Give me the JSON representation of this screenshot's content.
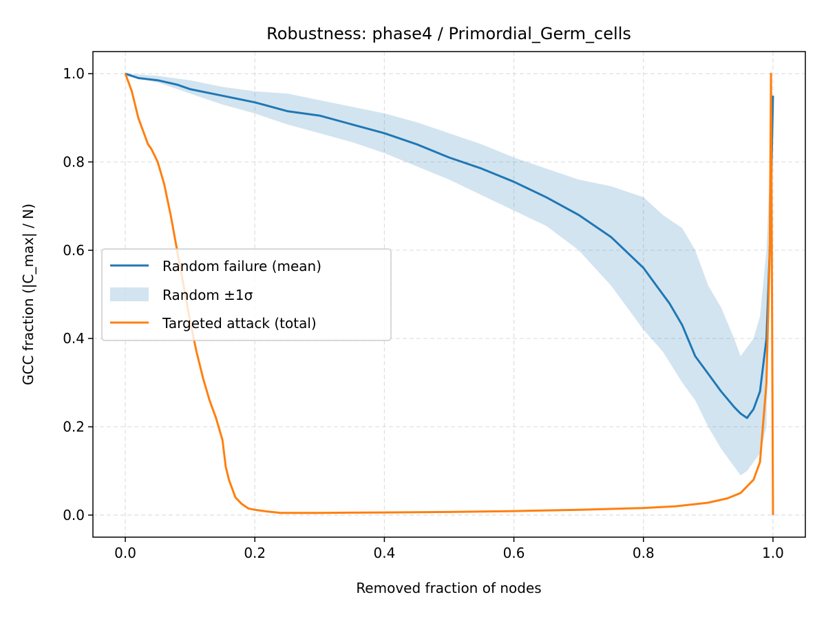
{
  "chart_data": {
    "type": "line",
    "title": "Robustness: phase4 / Primordial_Germ_cells",
    "xlabel": "Removed fraction of nodes",
    "ylabel": "GCC fraction (|C_max| / N)",
    "xlim": [
      -0.05,
      1.05
    ],
    "ylim": [
      -0.05,
      1.05
    ],
    "xticks": [
      0.0,
      0.2,
      0.4,
      0.6,
      0.8,
      1.0
    ],
    "xtick_labels": [
      "0.0",
      "0.2",
      "0.4",
      "0.6",
      "0.8",
      "1.0"
    ],
    "yticks": [
      0.0,
      0.2,
      0.4,
      0.6,
      0.8,
      1.0
    ],
    "ytick_labels": [
      "0.0",
      "0.2",
      "0.4",
      "0.6",
      "0.8",
      "1.0"
    ],
    "grid": true,
    "legend_position": "center-left",
    "legend": [
      {
        "label": "Random failure (mean)",
        "kind": "line",
        "color": "#1f77b4"
      },
      {
        "label": "Random ±1σ",
        "kind": "band",
        "color": "#1f77b4"
      },
      {
        "label": "Targeted attack (total)",
        "kind": "line",
        "color": "#ff7f0e"
      }
    ],
    "series": [
      {
        "name": "Random failure (mean)",
        "color": "#1f77b4",
        "x": [
          0.0,
          0.02,
          0.05,
          0.08,
          0.1,
          0.15,
          0.2,
          0.25,
          0.3,
          0.35,
          0.4,
          0.45,
          0.5,
          0.55,
          0.6,
          0.65,
          0.7,
          0.75,
          0.8,
          0.82,
          0.84,
          0.86,
          0.88,
          0.9,
          0.92,
          0.94,
          0.95,
          0.96,
          0.97,
          0.98,
          0.99,
          0.995,
          1.0
        ],
        "y": [
          1.0,
          0.99,
          0.985,
          0.975,
          0.965,
          0.95,
          0.935,
          0.915,
          0.905,
          0.885,
          0.865,
          0.84,
          0.81,
          0.785,
          0.755,
          0.72,
          0.68,
          0.63,
          0.56,
          0.52,
          0.48,
          0.43,
          0.36,
          0.32,
          0.28,
          0.245,
          0.23,
          0.22,
          0.24,
          0.28,
          0.4,
          0.6,
          0.95
        ]
      },
      {
        "name": "Random ±1σ",
        "color": "#1f77b4",
        "x": [
          0.0,
          0.05,
          0.1,
          0.15,
          0.2,
          0.25,
          0.3,
          0.35,
          0.4,
          0.45,
          0.5,
          0.55,
          0.6,
          0.65,
          0.7,
          0.75,
          0.8,
          0.83,
          0.86,
          0.88,
          0.9,
          0.92,
          0.94,
          0.95,
          0.96,
          0.97,
          0.98,
          0.99,
          1.0
        ],
        "upper": [
          1.0,
          0.995,
          0.985,
          0.97,
          0.96,
          0.955,
          0.94,
          0.925,
          0.91,
          0.89,
          0.865,
          0.84,
          0.81,
          0.785,
          0.76,
          0.745,
          0.72,
          0.68,
          0.65,
          0.6,
          0.52,
          0.47,
          0.4,
          0.36,
          0.38,
          0.4,
          0.45,
          0.6,
          0.95
        ],
        "lower": [
          0.995,
          0.98,
          0.955,
          0.93,
          0.91,
          0.885,
          0.865,
          0.845,
          0.82,
          0.79,
          0.76,
          0.725,
          0.69,
          0.655,
          0.6,
          0.52,
          0.42,
          0.37,
          0.3,
          0.26,
          0.2,
          0.15,
          0.11,
          0.09,
          0.1,
          0.12,
          0.14,
          0.2,
          0.95
        ]
      },
      {
        "name": "Targeted attack (total)",
        "color": "#ff7f0e",
        "x": [
          0.0,
          0.005,
          0.01,
          0.015,
          0.02,
          0.025,
          0.03,
          0.035,
          0.04,
          0.05,
          0.06,
          0.07,
          0.08,
          0.09,
          0.1,
          0.11,
          0.12,
          0.13,
          0.14,
          0.15,
          0.155,
          0.16,
          0.17,
          0.18,
          0.19,
          0.2,
          0.21,
          0.22,
          0.24,
          0.3,
          0.4,
          0.5,
          0.6,
          0.7,
          0.8,
          0.85,
          0.9,
          0.93,
          0.95,
          0.97,
          0.98,
          0.99,
          0.995,
          0.997,
          1.0
        ],
        "y": [
          1.0,
          0.98,
          0.96,
          0.93,
          0.9,
          0.88,
          0.86,
          0.84,
          0.83,
          0.8,
          0.75,
          0.68,
          0.6,
          0.52,
          0.44,
          0.37,
          0.31,
          0.26,
          0.22,
          0.17,
          0.11,
          0.08,
          0.04,
          0.025,
          0.015,
          0.012,
          0.01,
          0.008,
          0.005,
          0.005,
          0.006,
          0.007,
          0.009,
          0.012,
          0.016,
          0.02,
          0.028,
          0.038,
          0.05,
          0.08,
          0.12,
          0.3,
          0.6,
          1.0,
          0.0
        ]
      }
    ]
  }
}
